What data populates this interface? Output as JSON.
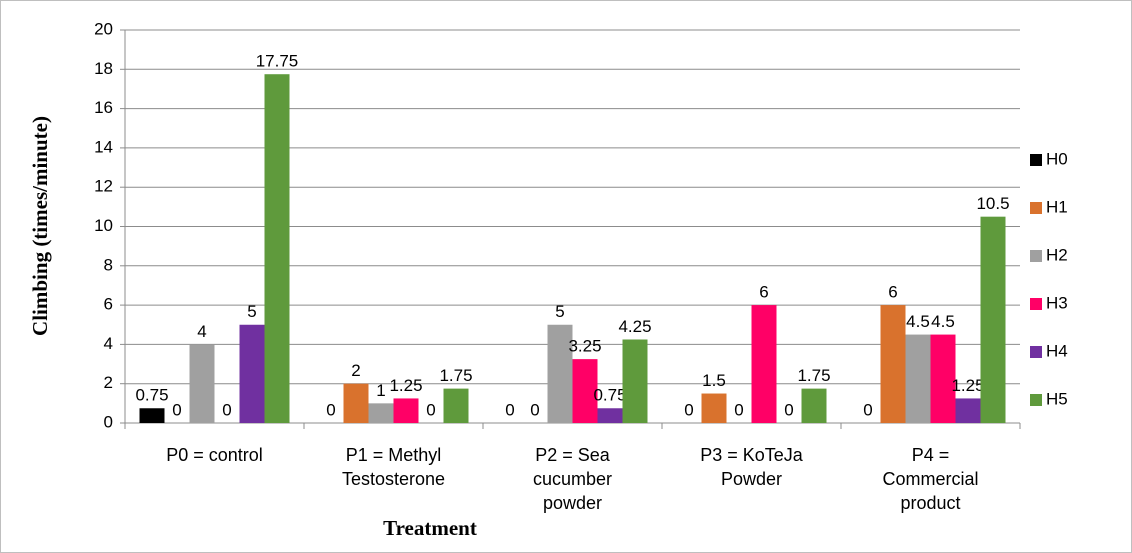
{
  "chart_data": {
    "type": "bar",
    "xlabel": "Treatment",
    "ylabel": "Climbing (times/minute)",
    "categories": [
      "P0 = control",
      "P1 = Methyl Testosterone",
      "P2 = Sea cucumber powder",
      "P3 = KoTeJa Powder",
      "P4 = Commercial product"
    ],
    "series": [
      {
        "name": "H0",
        "color": "#000000",
        "values": [
          0.75,
          0,
          0,
          0,
          0
        ]
      },
      {
        "name": "H1",
        "color": "#d9722d",
        "values": [
          0,
          2,
          0,
          1.5,
          6
        ]
      },
      {
        "name": "H2",
        "color": "#a0a0a0",
        "values": [
          4,
          1,
          5,
          0,
          4.5
        ]
      },
      {
        "name": "H3",
        "color": "#ff0066",
        "values": [
          0,
          1.25,
          3.25,
          6,
          4.5
        ]
      },
      {
        "name": "H4",
        "color": "#7030a0",
        "values": [
          5,
          0,
          0.75,
          0,
          1.25
        ]
      },
      {
        "name": "H5",
        "color": "#5f9a3c",
        "values": [
          17.75,
          1.75,
          4.25,
          1.75,
          10.5
        ]
      }
    ],
    "ylim": [
      0,
      20
    ],
    "yticks": [
      0,
      2,
      4,
      6,
      8,
      10,
      12,
      14,
      16,
      18,
      20
    ],
    "grid": true,
    "legend": "right"
  }
}
